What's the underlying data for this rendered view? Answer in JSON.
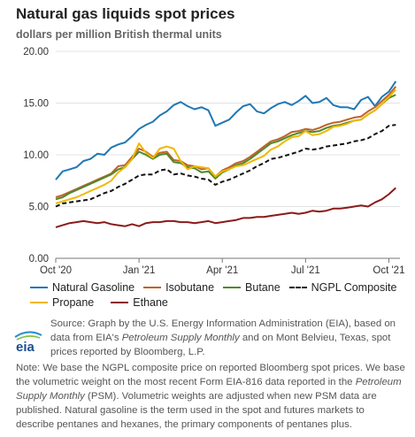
{
  "header": {
    "title": "Natural gas liquids spot prices",
    "subtitle": "dollars per million British thermal units"
  },
  "chart_data": {
    "type": "line",
    "x_ticks": [
      "Oct '20",
      "Jan '21",
      "Apr '21",
      "Jul '21",
      "Oct '21"
    ],
    "x_tick_months": [
      0,
      3,
      6,
      9,
      12
    ],
    "x_range": [
      0,
      12.4
    ],
    "ylim": [
      0,
      20
    ],
    "y_ticks": [
      "0.00",
      "5.00",
      "10.00",
      "15.00",
      "20.00"
    ],
    "y_tick_values": [
      0,
      5,
      10,
      15,
      20
    ],
    "grid": "horizontal",
    "legend_position": "bottom",
    "series": [
      {
        "name": "Natural Gasoline",
        "color": "#1f78b4",
        "dash": false,
        "x": [
          0,
          0.25,
          0.5,
          0.75,
          1.0,
          1.25,
          1.5,
          1.75,
          2.0,
          2.25,
          2.5,
          2.75,
          3.0,
          3.25,
          3.5,
          3.75,
          4.0,
          4.25,
          4.5,
          4.75,
          5.0,
          5.25,
          5.5,
          5.75,
          6.0,
          6.25,
          6.5,
          6.75,
          7.0,
          7.25,
          7.5,
          7.75,
          8.0,
          8.25,
          8.5,
          8.75,
          9.0,
          9.25,
          9.5,
          9.75,
          10.0,
          10.25,
          10.5,
          10.75,
          11.0,
          11.25,
          11.5,
          11.75,
          12.0,
          12.25
        ],
        "values": [
          7.6,
          8.4,
          8.6,
          8.8,
          9.4,
          9.6,
          10.1,
          10.0,
          10.7,
          11.0,
          11.2,
          11.8,
          12.5,
          12.9,
          13.2,
          13.8,
          14.2,
          14.8,
          15.1,
          14.7,
          14.4,
          14.6,
          14.3,
          12.8,
          13.1,
          13.4,
          14.1,
          14.7,
          14.9,
          14.2,
          14.0,
          14.5,
          14.9,
          15.1,
          14.8,
          15.2,
          15.7,
          15.0,
          15.1,
          15.5,
          14.8,
          14.6,
          14.6,
          14.4,
          15.3,
          15.6,
          14.7,
          15.6,
          16.1,
          17.1
        ]
      },
      {
        "name": "Isobutane",
        "color": "#c0622b",
        "dash": false,
        "x": [
          0,
          0.25,
          0.5,
          0.75,
          1.0,
          1.25,
          1.5,
          1.75,
          2.0,
          2.25,
          2.5,
          2.75,
          3.0,
          3.25,
          3.5,
          3.75,
          4.0,
          4.25,
          4.5,
          4.75,
          5.0,
          5.25,
          5.5,
          5.75,
          6.0,
          6.25,
          6.5,
          6.75,
          7.0,
          7.25,
          7.5,
          7.75,
          8.0,
          8.25,
          8.5,
          8.75,
          9.0,
          9.25,
          9.5,
          9.75,
          10.0,
          10.25,
          10.5,
          10.75,
          11.0,
          11.25,
          11.5,
          11.75,
          12.0,
          12.25
        ],
        "values": [
          5.9,
          6.1,
          6.4,
          6.7,
          7.0,
          7.3,
          7.6,
          7.9,
          8.2,
          8.9,
          9.0,
          9.8,
          10.6,
          10.3,
          9.8,
          10.2,
          10.3,
          9.5,
          9.4,
          9.0,
          8.9,
          8.6,
          8.7,
          7.9,
          8.5,
          8.8,
          9.2,
          9.4,
          9.8,
          10.3,
          10.8,
          11.3,
          11.5,
          11.8,
          12.2,
          12.3,
          12.5,
          12.4,
          12.6,
          12.9,
          13.1,
          13.2,
          13.4,
          13.6,
          13.7,
          14.2,
          14.6,
          15.2,
          15.8,
          16.6
        ]
      },
      {
        "name": "Butane",
        "color": "#4d8a2a",
        "dash": false,
        "x": [
          0,
          0.25,
          0.5,
          0.75,
          1.0,
          1.25,
          1.5,
          1.75,
          2.0,
          2.25,
          2.5,
          2.75,
          3.0,
          3.25,
          3.5,
          3.75,
          4.0,
          4.25,
          4.5,
          4.75,
          5.0,
          5.25,
          5.5,
          5.75,
          6.0,
          6.25,
          6.5,
          6.75,
          7.0,
          7.25,
          7.5,
          7.75,
          8.0,
          8.25,
          8.5,
          8.75,
          9.0,
          9.25,
          9.5,
          9.75,
          10.0,
          10.25,
          10.5,
          10.75,
          11.0,
          11.25,
          11.5,
          11.75,
          12.0,
          12.25
        ],
        "values": [
          5.7,
          5.9,
          6.3,
          6.6,
          6.9,
          7.2,
          7.5,
          7.8,
          8.1,
          8.6,
          8.8,
          9.6,
          10.3,
          10.0,
          9.6,
          10.0,
          10.1,
          9.3,
          9.2,
          8.8,
          8.7,
          8.3,
          8.4,
          7.7,
          8.3,
          8.6,
          9.0,
          9.2,
          9.6,
          10.1,
          10.6,
          11.1,
          11.3,
          11.6,
          11.9,
          12.1,
          12.3,
          12.2,
          12.3,
          12.6,
          12.8,
          12.9,
          13.1,
          13.3,
          13.4,
          13.9,
          14.3,
          14.9,
          15.5,
          15.8
        ]
      },
      {
        "name": "NGPL Composite",
        "color": "#111111",
        "dash": true,
        "x": [
          0,
          0.25,
          0.5,
          0.75,
          1.0,
          1.25,
          1.5,
          1.75,
          2.0,
          2.25,
          2.5,
          2.75,
          3.0,
          3.25,
          3.5,
          3.75,
          4.0,
          4.25,
          4.5,
          4.75,
          5.0,
          5.25,
          5.5,
          5.75,
          6.0,
          6.25,
          6.5,
          6.75,
          7.0,
          7.25,
          7.5,
          7.75,
          8.0,
          8.25,
          8.5,
          8.75,
          9.0,
          9.25,
          9.5,
          9.75,
          10.0,
          10.25,
          10.5,
          10.75,
          11.0,
          11.25,
          11.5,
          11.75,
          12.0,
          12.25
        ],
        "values": [
          5.0,
          5.3,
          5.4,
          5.5,
          5.6,
          5.7,
          6.0,
          6.3,
          6.5,
          6.9,
          7.2,
          7.6,
          8.0,
          8.1,
          8.1,
          8.5,
          8.6,
          8.1,
          8.2,
          8.0,
          7.9,
          7.7,
          7.6,
          7.1,
          7.4,
          7.6,
          7.9,
          8.2,
          8.5,
          8.9,
          9.2,
          9.6,
          9.7,
          9.9,
          10.1,
          10.3,
          10.6,
          10.5,
          10.6,
          10.8,
          10.9,
          11.0,
          11.1,
          11.3,
          11.4,
          11.6,
          12.0,
          12.3,
          12.8,
          12.9
        ]
      },
      {
        "name": "Propane",
        "color": "#f0b800",
        "dash": false,
        "x": [
          0,
          0.25,
          0.5,
          0.75,
          1.0,
          1.25,
          1.5,
          1.75,
          2.0,
          2.25,
          2.5,
          2.75,
          3.0,
          3.25,
          3.5,
          3.75,
          4.0,
          4.25,
          4.5,
          4.75,
          5.0,
          5.25,
          5.5,
          5.75,
          6.0,
          6.25,
          6.5,
          6.75,
          7.0,
          7.25,
          7.5,
          7.75,
          8.0,
          8.25,
          8.5,
          8.75,
          9.0,
          9.25,
          9.5,
          9.75,
          10.0,
          10.25,
          10.5,
          10.75,
          11.0,
          11.25,
          11.5,
          11.75,
          12.0,
          12.25
        ],
        "values": [
          5.3,
          5.5,
          5.7,
          5.9,
          6.2,
          6.5,
          6.8,
          7.1,
          7.5,
          8.3,
          8.8,
          9.6,
          11.1,
          10.2,
          9.7,
          10.6,
          10.8,
          10.6,
          9.4,
          8.6,
          8.9,
          8.8,
          8.7,
          7.9,
          8.4,
          8.6,
          8.9,
          9.0,
          9.3,
          9.6,
          9.9,
          10.5,
          10.8,
          11.3,
          11.7,
          11.8,
          12.3,
          11.9,
          12.0,
          12.3,
          12.7,
          12.8,
          13.0,
          13.3,
          13.4,
          13.9,
          14.3,
          14.9,
          15.6,
          16.3
        ]
      },
      {
        "name": "Ethane",
        "color": "#8b1a1a",
        "dash": false,
        "x": [
          0,
          0.25,
          0.5,
          0.75,
          1.0,
          1.25,
          1.5,
          1.75,
          2.0,
          2.25,
          2.5,
          2.75,
          3.0,
          3.25,
          3.5,
          3.75,
          4.0,
          4.25,
          4.5,
          4.75,
          5.0,
          5.25,
          5.5,
          5.75,
          6.0,
          6.25,
          6.5,
          6.75,
          7.0,
          7.25,
          7.5,
          7.75,
          8.0,
          8.25,
          8.5,
          8.75,
          9.0,
          9.25,
          9.5,
          9.75,
          10.0,
          10.25,
          10.5,
          10.75,
          11.0,
          11.25,
          11.5,
          11.75,
          12.0,
          12.25
        ],
        "values": [
          3.0,
          3.2,
          3.4,
          3.5,
          3.6,
          3.5,
          3.4,
          3.5,
          3.3,
          3.2,
          3.1,
          3.3,
          3.1,
          3.4,
          3.5,
          3.5,
          3.6,
          3.6,
          3.5,
          3.5,
          3.4,
          3.5,
          3.6,
          3.4,
          3.5,
          3.6,
          3.7,
          3.9,
          3.9,
          4.0,
          4.0,
          4.1,
          4.2,
          4.3,
          4.4,
          4.3,
          4.4,
          4.6,
          4.5,
          4.6,
          4.8,
          4.8,
          4.9,
          5.0,
          5.1,
          5.0,
          5.4,
          5.7,
          6.2,
          6.8
        ]
      }
    ]
  },
  "legend": {
    "row1": [
      "Natural Gasoline",
      "Isobutane",
      "Butane",
      "NGPL Composite"
    ],
    "row2": [
      "Propane",
      "Ethane"
    ]
  },
  "source": {
    "part1": "Source: Graph by the U.S. Energy Information Administration (EIA), based on data from EIA's ",
    "italic1": "Petroleum Supply Monthly",
    "part2": " and on Mont Belvieu, Texas, spot prices reported by Bloomberg, L.P."
  },
  "logo": {
    "text": "eia"
  },
  "note": {
    "part1": "Note: We base the NGPL composite price on reported Bloomberg spot prices. We base the volumetric weight on the most recent Form EIA-816 data reported in the ",
    "italic1": "Petroleum Supply Monthly",
    "part2": " (PSM). Volumetric weights are adjusted when new PSM data are published. Natural gasoline is the term used in the spot and futures markets to describe pentanes and hexanes, the primary components of pentanes plus."
  }
}
